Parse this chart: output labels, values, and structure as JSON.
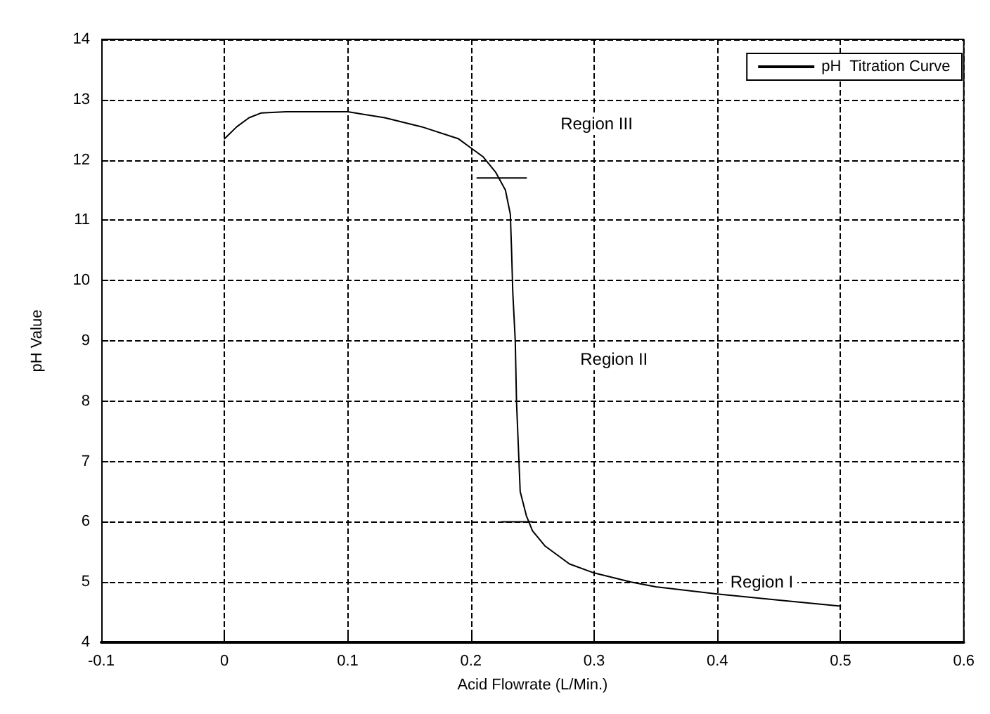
{
  "chart_data": {
    "type": "line",
    "xlabel": "Acid Flowrate (L/Min.)",
    "ylabel": "pH Value",
    "xlim": [
      -0.1,
      0.6
    ],
    "xticks": [
      -0.1,
      0,
      0.1,
      0.2,
      0.3,
      0.4,
      0.5,
      0.6
    ],
    "ylim": [
      4,
      14
    ],
    "yticks": [
      4,
      5,
      6,
      7,
      8,
      9,
      10,
      11,
      12,
      13,
      14
    ],
    "grid": true,
    "legend": "top right",
    "marker": "none",
    "series": [
      {
        "name": "pH  Titration Curve",
        "color": "#000000",
        "x": [
          0,
          0.01,
          0.02,
          0.03,
          0.05,
          0.1,
          0.13,
          0.16,
          0.19,
          0.2,
          0.21,
          0.22,
          0.228,
          0.232,
          0.233,
          0.234,
          0.236,
          0.237,
          0.238,
          0.24,
          0.245,
          0.25,
          0.26,
          0.28,
          0.3,
          0.33,
          0.35,
          0.4,
          0.45,
          0.5
        ],
        "values": [
          12.35,
          12.55,
          12.7,
          12.78,
          12.8,
          12.8,
          12.7,
          12.55,
          12.35,
          12.2,
          12.05,
          11.8,
          11.5,
          11.1,
          10.5,
          9.8,
          9,
          8,
          7.5,
          6.5,
          6.1,
          5.85,
          5.6,
          5.3,
          5.15,
          5,
          4.92,
          4.8,
          4.7,
          4.6
        ]
      },
      {
        "color": "#000000",
        "x": [
          0.205,
          0.245
        ],
        "values": [
          11.7,
          11.7
        ]
      },
      {
        "color": "#000000",
        "x": [
          0.225,
          0.25
        ],
        "values": [
          6,
          6
        ]
      }
    ],
    "annotations": [
      "Region III",
      "Region II",
      "Region I"
    ]
  }
}
